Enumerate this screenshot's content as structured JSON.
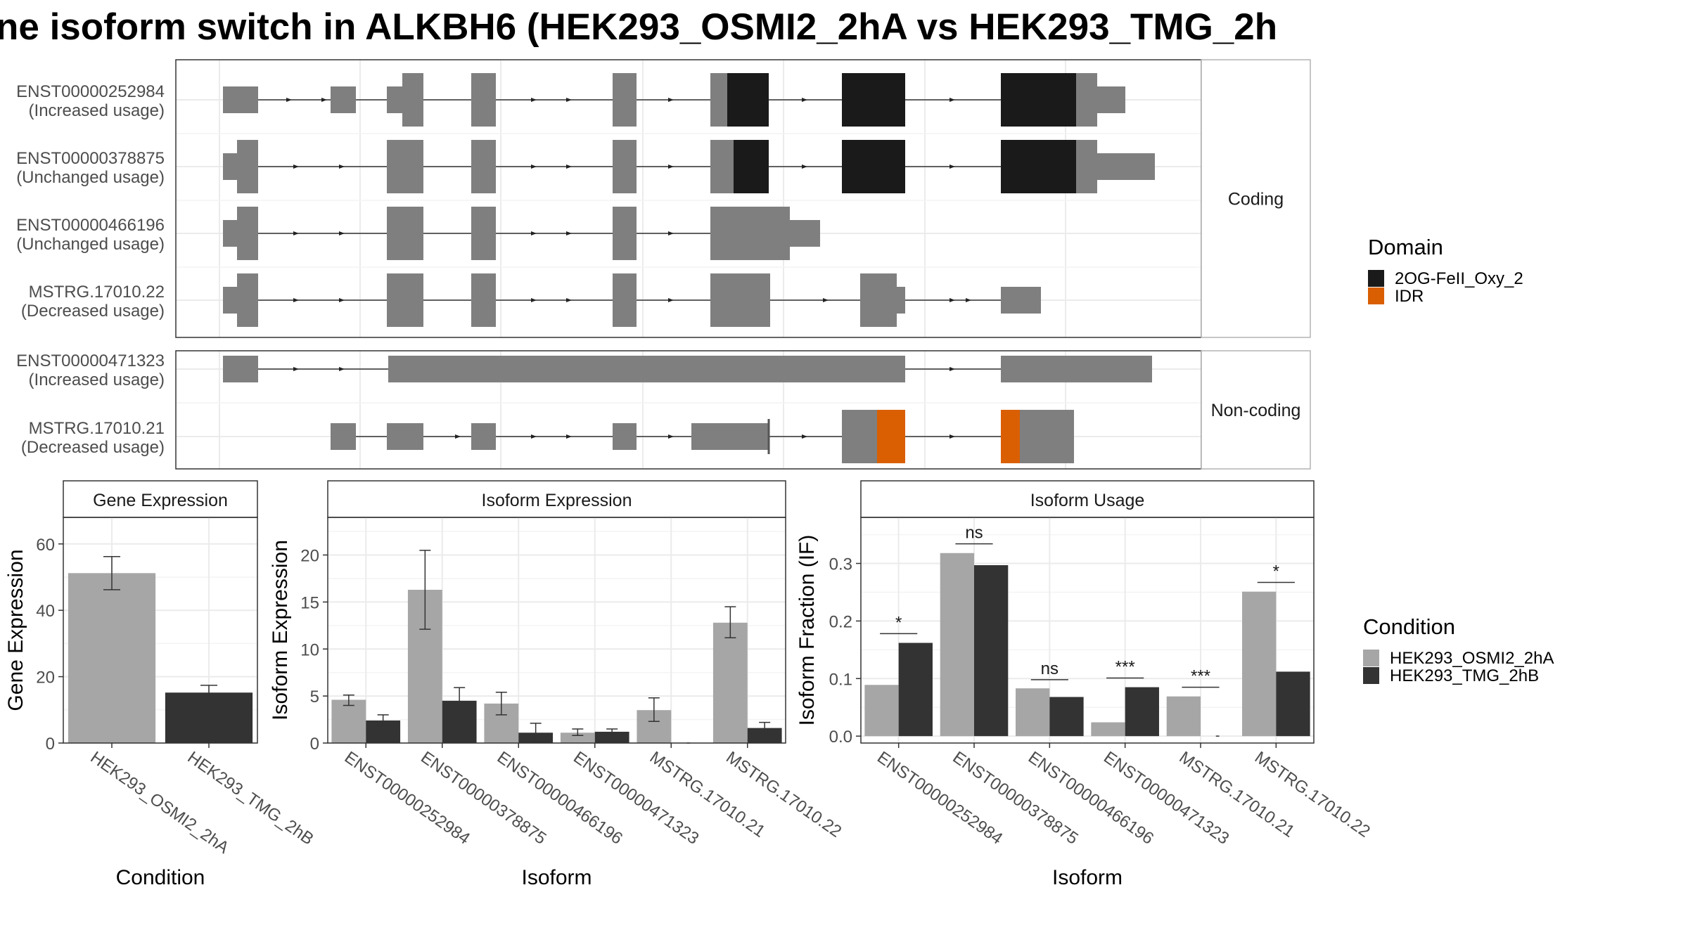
{
  "title": "ne isoform switch in ALKBH6 (HEK293_OSMI2_2hA vs HEK293_TMG_2h",
  "colors": {
    "domain_2og": "#1a1a1a",
    "domain_idr": "#d95f02",
    "exon": "#7f7f7f",
    "cond_a": "#a6a6a6",
    "cond_b": "#333333"
  },
  "chart_data": [
    {
      "type": "gene-structure",
      "panels": [
        {
          "label": "Coding",
          "transcripts": [
            {
              "id": "ENST00000252984",
              "usage": "(Increased usage)",
              "domains": [
                "2OG-FeII_Oxy_2"
              ]
            },
            {
              "id": "ENST00000378875",
              "usage": "(Unchanged usage)",
              "domains": [
                "2OG-FeII_Oxy_2"
              ]
            },
            {
              "id": "ENST00000466196",
              "usage": "(Unchanged usage)",
              "domains": []
            },
            {
              "id": "MSTRG.17010.22",
              "usage": "(Decreased usage)",
              "domains": []
            }
          ]
        },
        {
          "label": "Non-coding",
          "transcripts": [
            {
              "id": "ENST00000471323",
              "usage": "(Increased usage)",
              "domains": []
            },
            {
              "id": "MSTRG.17010.21",
              "usage": "(Decreased usage)",
              "domains": [
                "IDR"
              ]
            }
          ]
        }
      ],
      "legend_title": "Domain",
      "legend": [
        "2OG-FeII_Oxy_2",
        "IDR"
      ]
    },
    {
      "type": "bar",
      "strip": "Gene Expression",
      "xlabel": "Condition",
      "ylabel": "Gene Expression",
      "ylim": [
        0,
        68
      ],
      "yticks": [
        0,
        20,
        40,
        60
      ],
      "categories": [
        "HEK293_OSMI2_2hA",
        "HEK293_TMG_2hB"
      ],
      "values": [
        51.2,
        15.2
      ],
      "err_low": [
        46.2,
        13.3
      ],
      "err_high": [
        56.2,
        17.4
      ]
    },
    {
      "type": "bar",
      "strip": "Isoform Expression",
      "xlabel": "Isoform",
      "ylabel": "Isoform Expression",
      "ylim": [
        0,
        24
      ],
      "yticks": [
        0,
        5,
        10,
        15,
        20
      ],
      "categories": [
        "ENST00000252984",
        "ENST00000378875",
        "ENST00000466196",
        "ENST00000471323",
        "MSTRG.17010.21",
        "MSTRG.17010.22"
      ],
      "series": [
        {
          "name": "HEK293_OSMI2_2hA",
          "values": [
            4.6,
            16.3,
            4.2,
            1.1,
            3.5,
            12.8
          ],
          "err_low": [
            4.0,
            12.1,
            3.0,
            0.8,
            2.3,
            11.2
          ],
          "err_high": [
            5.1,
            20.5,
            5.4,
            1.5,
            4.8,
            14.5
          ]
        },
        {
          "name": "HEK293_TMG_2hB",
          "values": [
            2.4,
            4.5,
            1.1,
            1.2,
            0.0,
            1.6
          ],
          "err_low": [
            1.8,
            3.2,
            0.1,
            0.9,
            0.0,
            1.0
          ],
          "err_high": [
            3.0,
            5.9,
            2.1,
            1.5,
            0.0,
            2.2
          ]
        }
      ]
    },
    {
      "type": "bar",
      "strip": "Isoform Usage",
      "xlabel": "Isoform",
      "ylabel": "Isoform Fraction (IF)",
      "ylim": [
        -0.012,
        0.38
      ],
      "yticks": [
        0.0,
        0.1,
        0.2,
        0.3
      ],
      "ytick_labels": [
        "0.0",
        "0.1",
        "0.2",
        "0.3"
      ],
      "categories": [
        "ENST00000252984",
        "ENST00000378875",
        "ENST00000466196",
        "ENST00000471323",
        "MSTRG.17010.21",
        "MSTRG.17010.22"
      ],
      "series": [
        {
          "name": "HEK293_OSMI2_2hA",
          "values": [
            0.089,
            0.318,
            0.083,
            0.024,
            0.069,
            0.251
          ]
        },
        {
          "name": "HEK293_TMG_2hB",
          "values": [
            0.162,
            0.297,
            0.068,
            0.085,
            0.0,
            0.112
          ]
        }
      ],
      "significance": [
        "*",
        "ns",
        "ns",
        "***",
        "***",
        "*"
      ],
      "sig_level": [
        0.178,
        0.334,
        0.098,
        0.101,
        0.085,
        0.267
      ],
      "legend_title": "Condition",
      "legend": [
        "HEK293_OSMI2_2hA",
        "HEK293_TMG_2hB"
      ]
    }
  ]
}
